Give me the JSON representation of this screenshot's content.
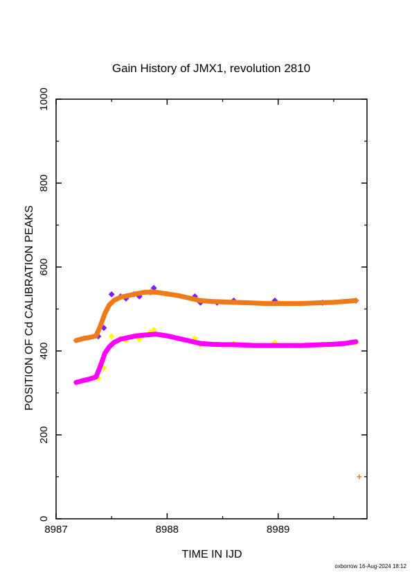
{
  "chart_data": {
    "type": "scatter",
    "title": "Gain History of JMX1, revolution 2810",
    "xlabel": "TIME IN IJD",
    "ylabel": "POSITION OF Cd CALIBRATION PEAKS",
    "xlim": [
      8987,
      8989.8
    ],
    "ylim": [
      0,
      1000
    ],
    "x_ticks": [
      8987,
      8988,
      8989
    ],
    "x_tick_labels": [
      "8987",
      "8988",
      "8989"
    ],
    "y_ticks": [
      0,
      200,
      400,
      600,
      800,
      1000
    ],
    "y_tick_labels": [
      "0",
      "200",
      "400",
      "600",
      "800",
      "1000"
    ],
    "grid": false,
    "legend": "none",
    "series": [
      {
        "color": "#7f1fff",
        "marker": "diamond",
        "x": [
          8987.38,
          8987.43,
          8987.5,
          8987.58,
          8987.63,
          8987.7,
          8987.75,
          8987.85,
          8987.88,
          8988.25,
          8988.3,
          8988.45,
          8988.6,
          8988.97,
          8989.4,
          8989.7
        ],
        "y": [
          435,
          455,
          535,
          530,
          525,
          535,
          530,
          540,
          550,
          530,
          515,
          515,
          520,
          520,
          515,
          520
        ]
      },
      {
        "color": "#ee7a1a",
        "marker": "cross",
        "x": [
          8987.18,
          8987.25,
          8987.3,
          8987.36,
          8987.4,
          8987.44,
          8987.48,
          8987.52,
          8987.58,
          8987.65,
          8987.72,
          8987.8,
          8987.9,
          8988.0,
          8988.1,
          8988.2,
          8988.3,
          8988.4,
          8988.5,
          8988.6,
          8988.7,
          8988.8,
          8988.9,
          8989.0,
          8989.1,
          8989.2,
          8989.3,
          8989.4,
          8989.5,
          8989.6,
          8989.7,
          8989.73
        ],
        "y": [
          425,
          430,
          432,
          436,
          460,
          490,
          510,
          520,
          528,
          532,
          536,
          540,
          540,
          536,
          532,
          526,
          520,
          518,
          517,
          516,
          515,
          514,
          513,
          513,
          513,
          513,
          514,
          515,
          516,
          518,
          520,
          100
        ]
      },
      {
        "color": "#ffff00",
        "marker": "diamond",
        "x": [
          8987.38,
          8987.43,
          8987.5,
          8987.58,
          8987.63,
          8987.7,
          8987.75,
          8987.85,
          8987.88,
          8988.25,
          8988.3,
          8988.45,
          8988.6,
          8988.97,
          8989.4,
          8989.7
        ],
        "y": [
          335,
          360,
          435,
          430,
          425,
          435,
          428,
          445,
          450,
          430,
          415,
          415,
          418,
          420,
          415,
          420
        ]
      },
      {
        "color": "#ff00ff",
        "marker": "cross",
        "x": [
          8987.18,
          8987.25,
          8987.3,
          8987.36,
          8987.4,
          8987.44,
          8987.48,
          8987.52,
          8987.58,
          8987.65,
          8987.72,
          8987.8,
          8987.9,
          8988.0,
          8988.1,
          8988.2,
          8988.3,
          8988.4,
          8988.5,
          8988.6,
          8988.7,
          8988.8,
          8988.9,
          8989.0,
          8989.1,
          8989.2,
          8989.3,
          8989.4,
          8989.5,
          8989.6,
          8989.7
        ],
        "y": [
          325,
          330,
          333,
          338,
          365,
          395,
          410,
          420,
          428,
          432,
          436,
          438,
          440,
          436,
          430,
          424,
          418,
          416,
          415,
          415,
          414,
          413,
          413,
          413,
          413,
          413,
          414,
          415,
          416,
          418,
          422
        ]
      }
    ]
  },
  "footer": "oxborrow 16-Aug-2024 18:12"
}
